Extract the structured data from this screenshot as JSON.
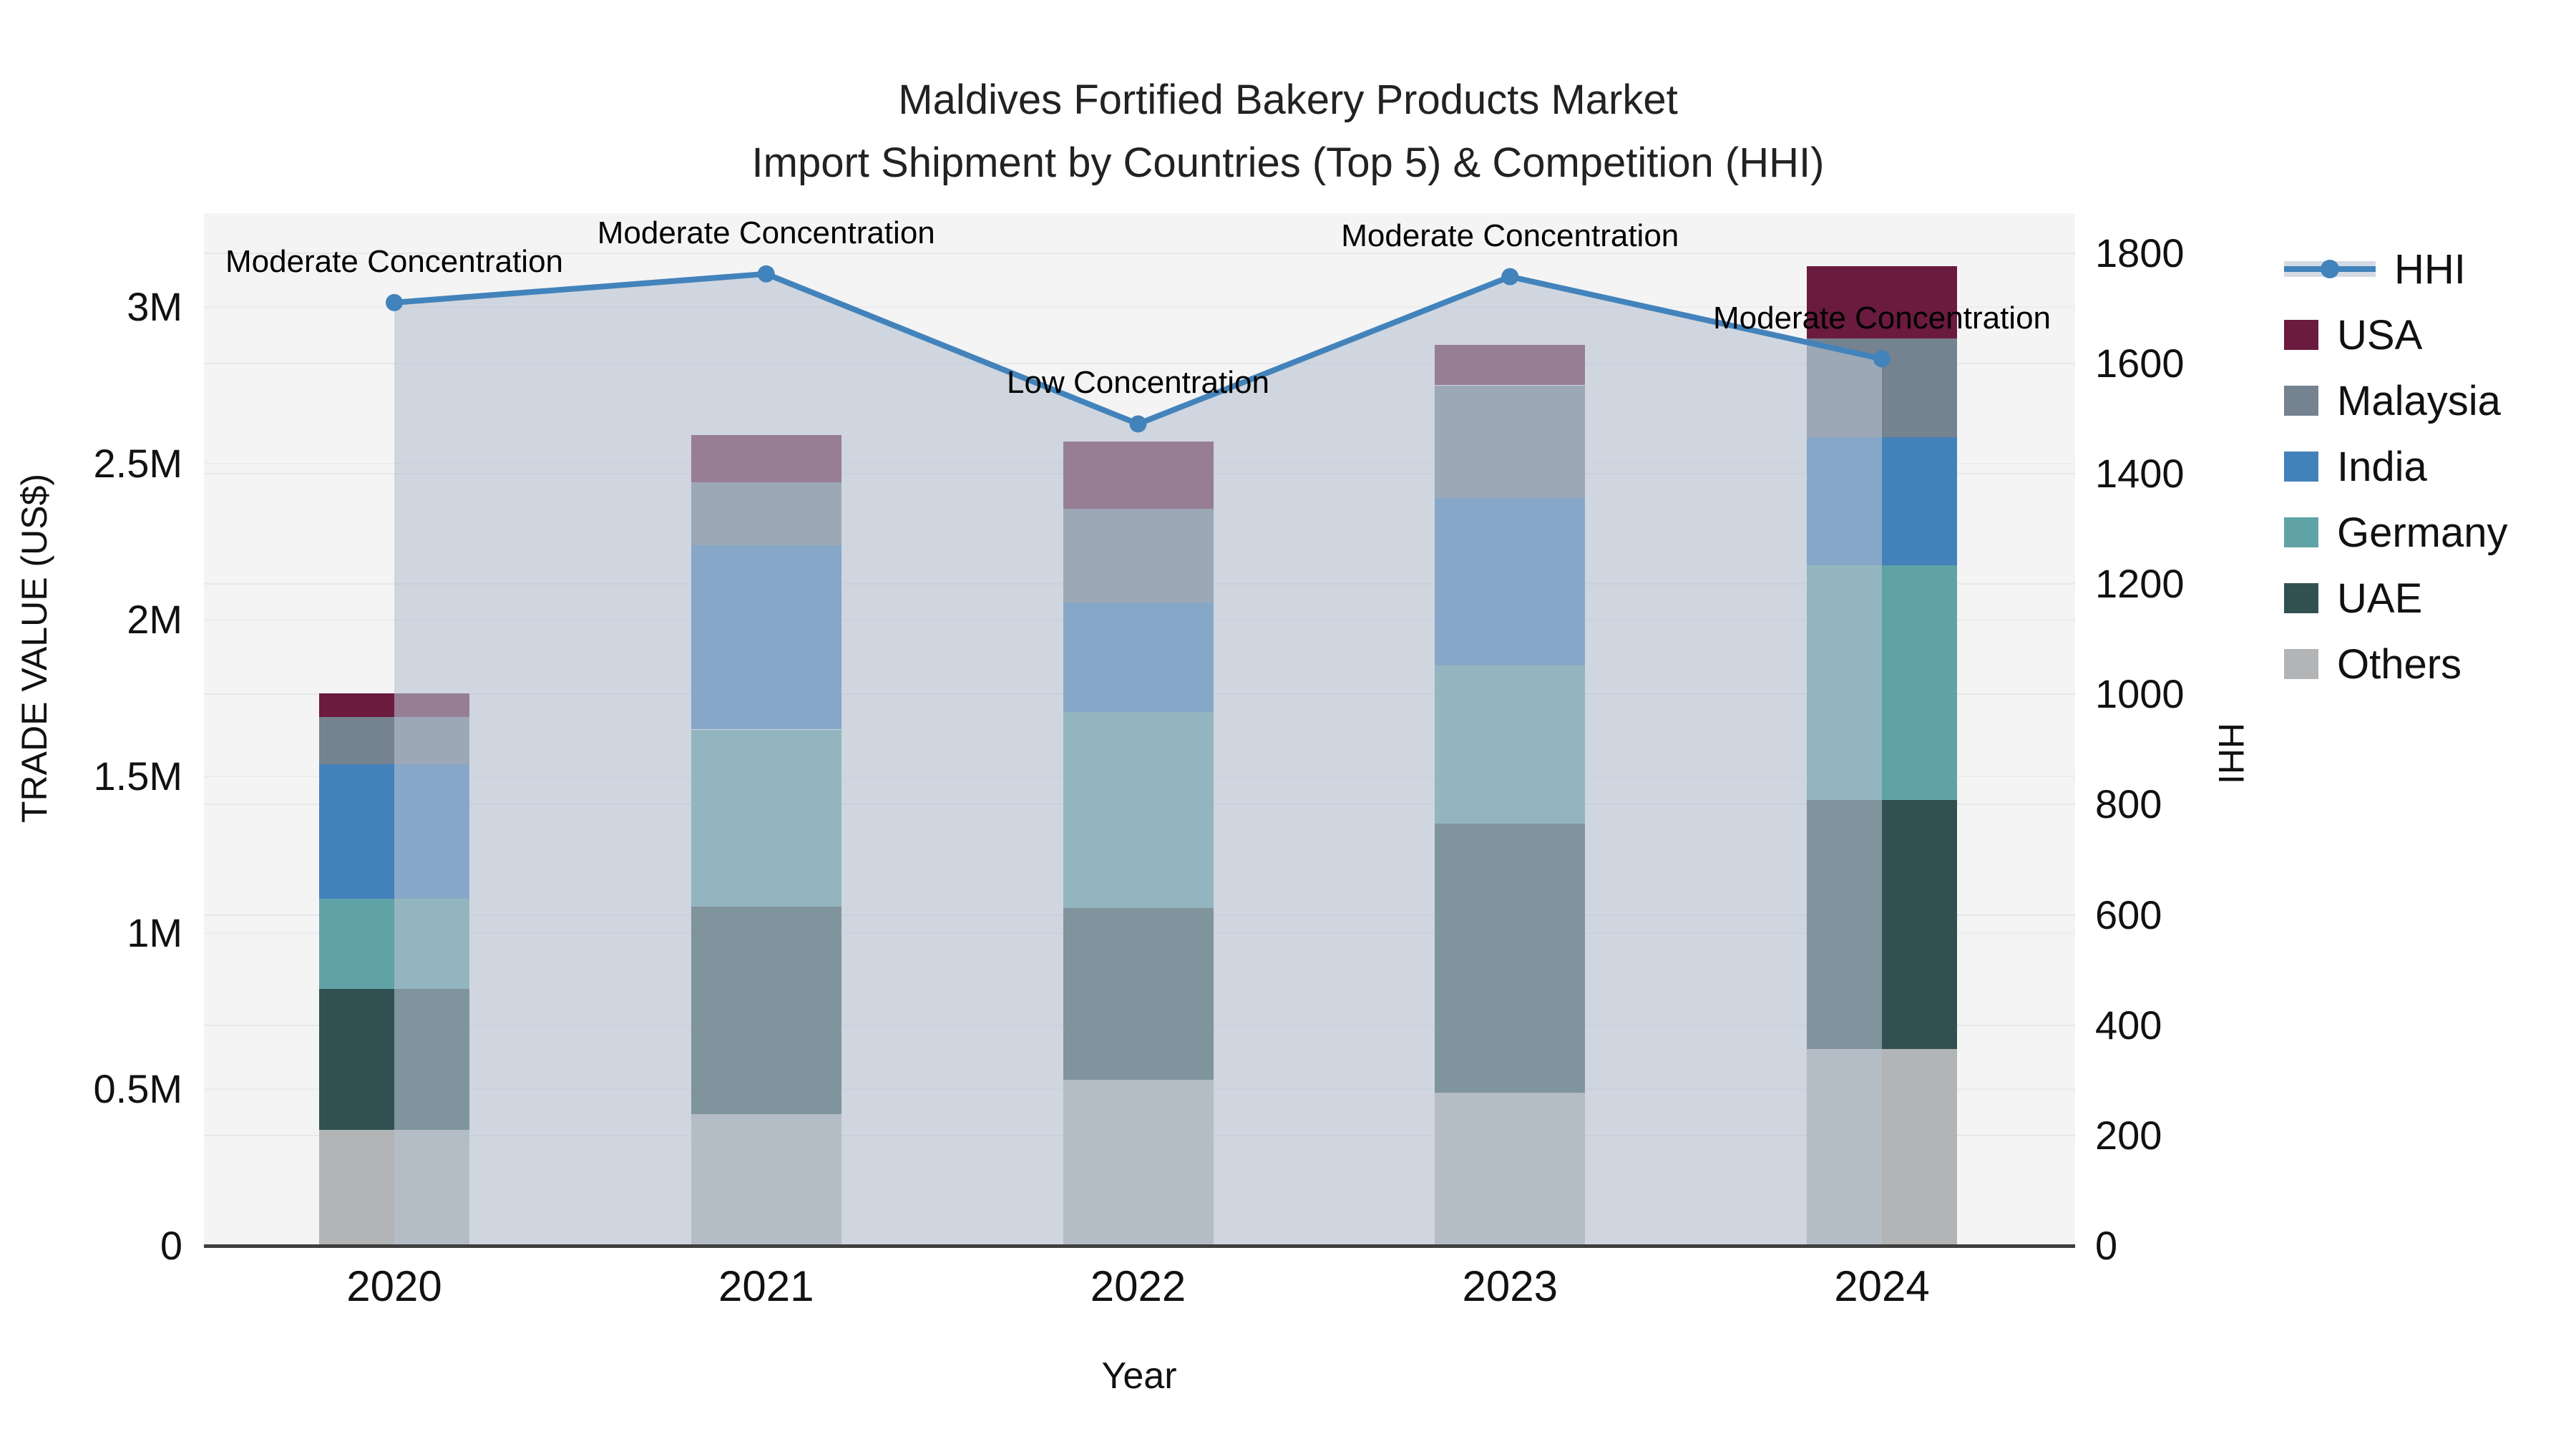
{
  "page": {
    "title_line1": "Maldives Fortified Bakery Products Market",
    "title_line2": "Import Shipment by Countries (Top 5) & Competition (HHI)"
  },
  "colors": {
    "plot_background": "#f4f4f5",
    "hhi_line": "#4383bb",
    "hhi_fill": "rgba(181,193,208,0.6)",
    "usa": "#6a1b3e",
    "malaysia": "#75828f",
    "india": "#4381bb",
    "germany": "#60a3a6",
    "uae": "#315052",
    "others": "#b2b4b5"
  },
  "chart_data": {
    "type": "bar",
    "subtype": "stacked-bars-with-line-overlay",
    "title": "Maldives Fortified Bakery Products Market",
    "subtitle": "Import Shipment by Countries (Top 5) & Competition (HHI)",
    "categories": [
      "2020",
      "2021",
      "2022",
      "2023",
      "2024"
    ],
    "xlabel": "Year",
    "ylabel_left": "TRADE VALUE (US$)",
    "ylabel_right": "HHI",
    "y_left_unit": "million US$",
    "y_left_ticks": [
      "0",
      "0.5M",
      "1M",
      "1.5M",
      "2M",
      "2.5M",
      "3M"
    ],
    "y_left_tick_values": [
      0,
      0.5,
      1,
      1.5,
      2,
      2.5,
      3
    ],
    "y_left_max": 3.3,
    "y_right_ticks": [
      "0",
      "200",
      "400",
      "600",
      "800",
      "1000",
      "1200",
      "1400",
      "1600",
      "1800"
    ],
    "y_right_tick_values": [
      0,
      200,
      400,
      600,
      800,
      1000,
      1200,
      1400,
      1600,
      1800
    ],
    "y_right_max": 1872,
    "grid": true,
    "legend_position": "right",
    "series": [
      {
        "name": "Others",
        "color_key": "others",
        "values": [
          0.37,
          0.42,
          0.53,
          0.49,
          0.63
        ]
      },
      {
        "name": "UAE",
        "color_key": "uae",
        "values": [
          0.45,
          0.665,
          0.55,
          0.86,
          0.795
        ]
      },
      {
        "name": "Germany",
        "color_key": "germany",
        "values": [
          0.29,
          0.565,
          0.625,
          0.505,
          0.75
        ]
      },
      {
        "name": "India",
        "color_key": "india",
        "values": [
          0.43,
          0.59,
          0.35,
          0.535,
          0.41
        ]
      },
      {
        "name": "Malaysia",
        "color_key": "malaysia",
        "values": [
          0.15,
          0.2,
          0.3,
          0.36,
          0.315
        ]
      },
      {
        "name": "USA",
        "color_key": "usa",
        "values": [
          0.075,
          0.15,
          0.215,
          0.13,
          0.23
        ]
      }
    ],
    "bar_totals": [
      1.765,
      2.59,
      2.57,
      2.88,
      3.13
    ],
    "line_series": {
      "name": "HHI",
      "color_key": "hhi_line",
      "fill_key": "hhi_fill",
      "values": [
        1710,
        1762,
        1490,
        1757,
        1608
      ]
    },
    "annotations": [
      "Moderate Concentration",
      "Moderate Concentration",
      "Low Concentration",
      "Moderate Concentration",
      "Moderate Concentration"
    ],
    "legend": [
      {
        "label": "HHI",
        "kind": "line",
        "color_key": "hhi_line"
      },
      {
        "label": "USA",
        "kind": "rect",
        "color_key": "usa"
      },
      {
        "label": "Malaysia",
        "kind": "rect",
        "color_key": "malaysia"
      },
      {
        "label": "India",
        "kind": "rect",
        "color_key": "india"
      },
      {
        "label": "Germany",
        "kind": "rect",
        "color_key": "germany"
      },
      {
        "label": "UAE",
        "kind": "rect",
        "color_key": "uae"
      },
      {
        "label": "Others",
        "kind": "rect",
        "color_key": "others"
      }
    ]
  }
}
